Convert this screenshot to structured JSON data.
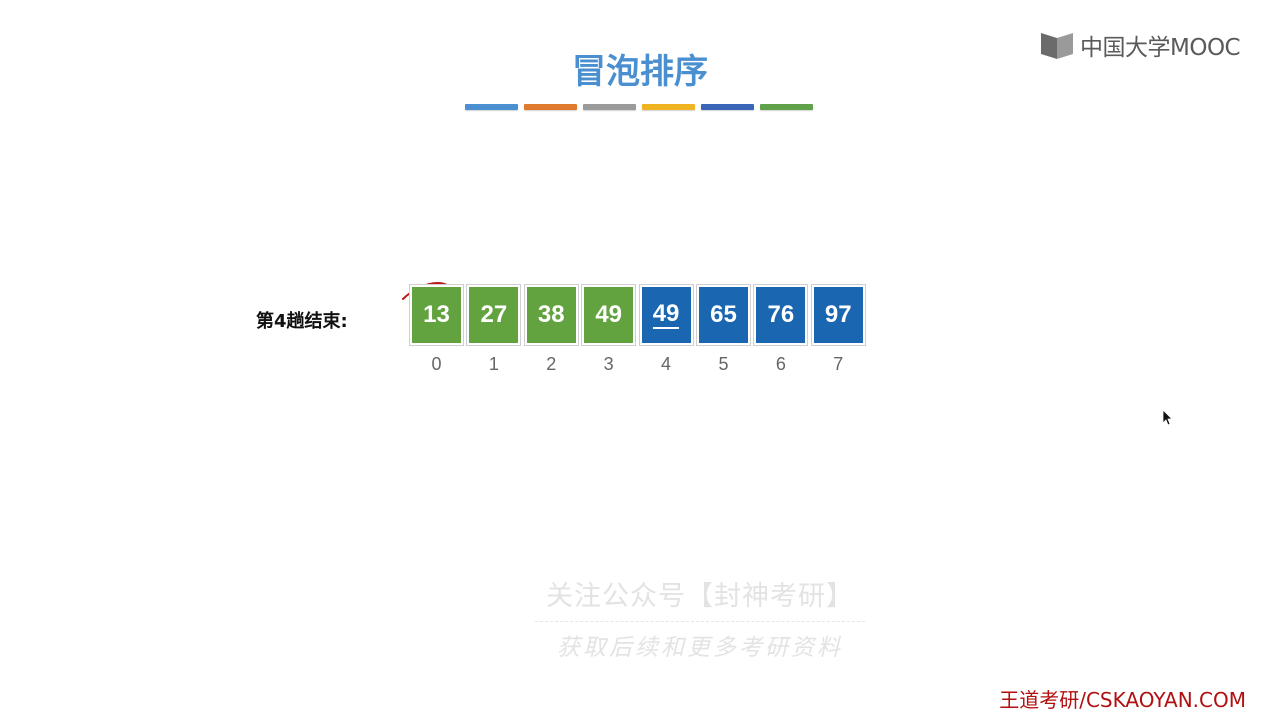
{
  "logo": {
    "text": "中国大学MOOC"
  },
  "title": "冒泡排序",
  "color_bars": [
    "#4a8fcf",
    "#e07a2e",
    "#9a9a9a",
    "#f0b322",
    "#3a66b8",
    "#5fa24a"
  ],
  "row_label": "第4趟结束:",
  "array": [
    {
      "value": "13",
      "state": "sorted-a",
      "underline": false
    },
    {
      "value": "27",
      "state": "sorted-a",
      "underline": false
    },
    {
      "value": "38",
      "state": "sorted-a",
      "underline": false
    },
    {
      "value": "49",
      "state": "sorted-a",
      "underline": false
    },
    {
      "value": "49",
      "state": "sorted-b",
      "underline": true
    },
    {
      "value": "65",
      "state": "sorted-b",
      "underline": false
    },
    {
      "value": "76",
      "state": "sorted-b",
      "underline": false
    },
    {
      "value": "97",
      "state": "sorted-b",
      "underline": false
    }
  ],
  "indices": [
    "0",
    "1",
    "2",
    "3",
    "4",
    "5",
    "6",
    "7"
  ],
  "watermark": {
    "line1": "关注公众号【封神考研】",
    "line2": "获取后续和更多考研资料"
  },
  "footer": "王道考研/CSKAOYAN.COM",
  "colors": {
    "accent": "#4a8fcf",
    "green": "#62a33f",
    "blue": "#1a66b0",
    "footer": "#b01010"
  }
}
